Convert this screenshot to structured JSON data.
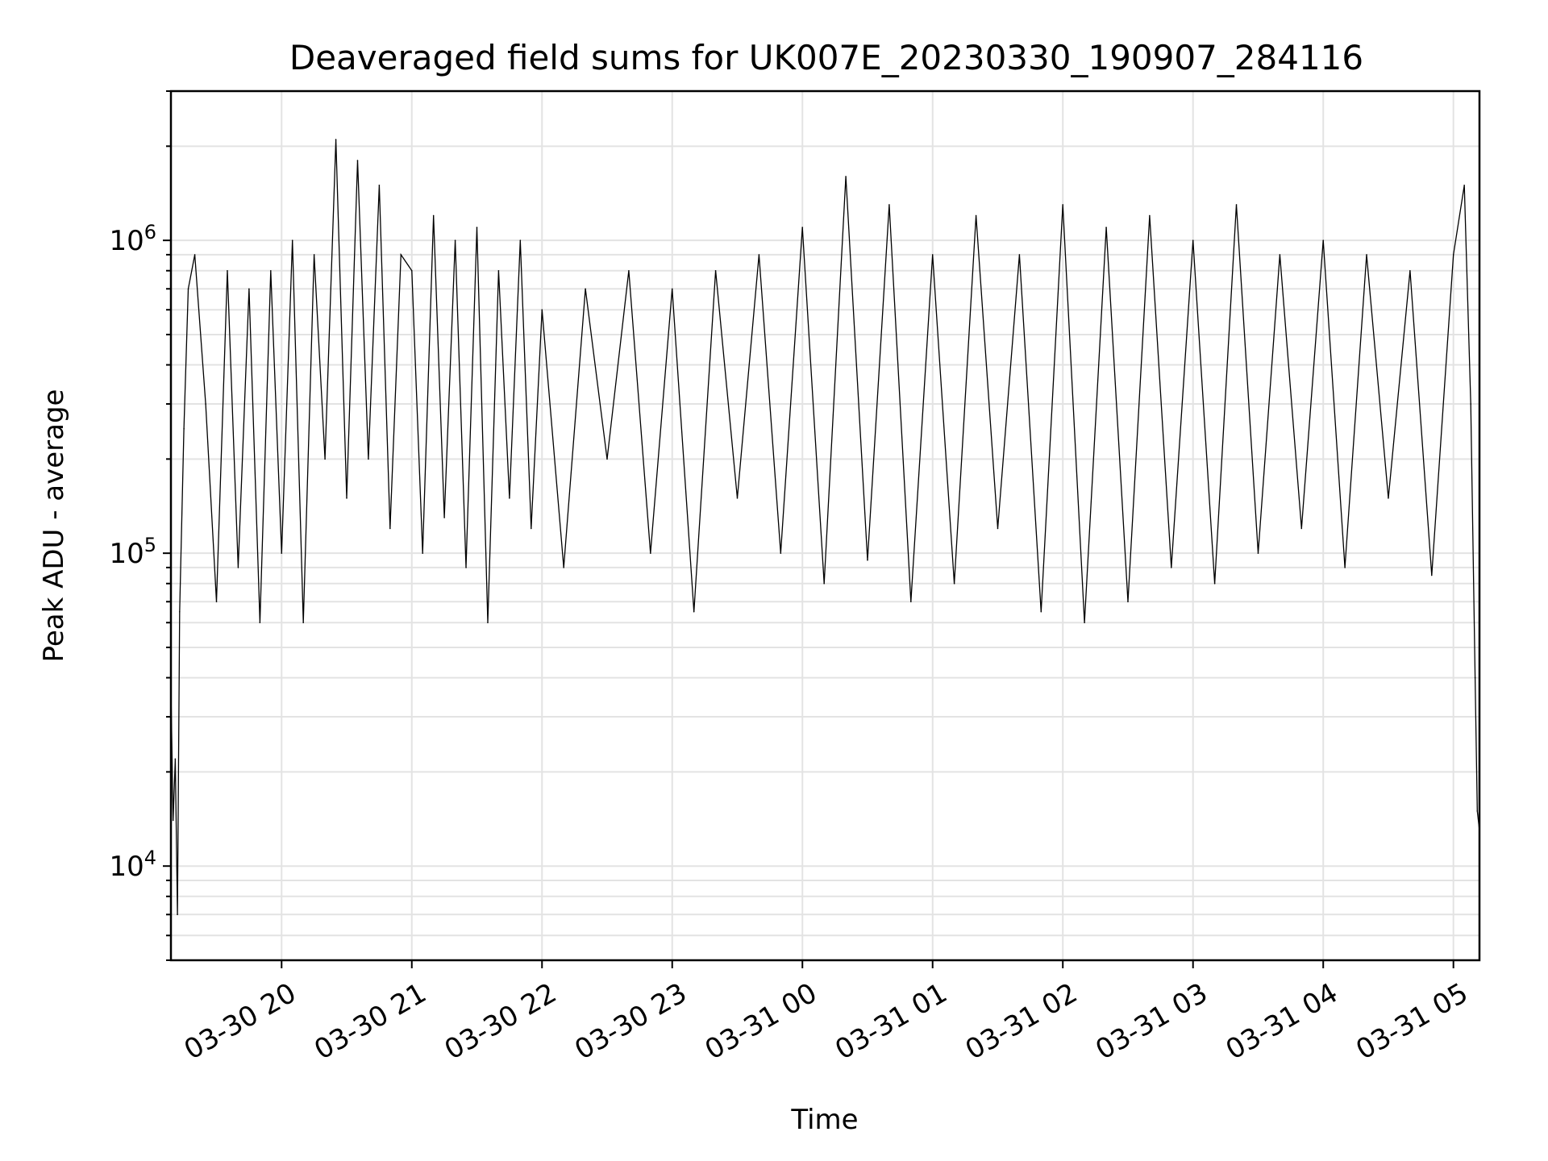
{
  "chart_data": {
    "type": "line",
    "title": "Deaveraged field sums for UK007E_20230330_190907_284116",
    "xlabel": "Time",
    "ylabel": "Peak ADU - average",
    "yscale": "log",
    "ylim": [
      5000,
      3000000
    ],
    "xlim": [
      "2023-03-30 19:09",
      "2023-03-31 05:12"
    ],
    "grid": true,
    "line_color": "#000000",
    "x_ticks": [
      {
        "value": "2023-03-30 20:00",
        "label": "03-30 20"
      },
      {
        "value": "2023-03-30 21:00",
        "label": "03-30 21"
      },
      {
        "value": "2023-03-30 22:00",
        "label": "03-30 22"
      },
      {
        "value": "2023-03-30 23:00",
        "label": "03-30 23"
      },
      {
        "value": "2023-03-31 00:00",
        "label": "03-31 00"
      },
      {
        "value": "2023-03-31 01:00",
        "label": "03-31 01"
      },
      {
        "value": "2023-03-31 02:00",
        "label": "03-31 02"
      },
      {
        "value": "2023-03-31 03:00",
        "label": "03-31 03"
      },
      {
        "value": "2023-03-31 04:00",
        "label": "03-31 04"
      },
      {
        "value": "2023-03-31 05:00",
        "label": "03-31 05"
      }
    ],
    "y_ticks": [
      {
        "value": 10000,
        "base": "10",
        "exp": "4"
      },
      {
        "value": 100000,
        "base": "10",
        "exp": "5"
      },
      {
        "value": 1000000,
        "base": "10",
        "exp": "6"
      }
    ],
    "series": [
      {
        "x": [
          "2023-03-30 19:09",
          "2023-03-30 19:10",
          "2023-03-30 19:11",
          "2023-03-30 19:12",
          "2023-03-30 19:13",
          "2023-03-30 19:15",
          "2023-03-30 19:17",
          "2023-03-30 19:20",
          "2023-03-30 19:25",
          "2023-03-30 19:30",
          "2023-03-30 19:35",
          "2023-03-30 19:40",
          "2023-03-30 19:45",
          "2023-03-30 19:50",
          "2023-03-30 19:55",
          "2023-03-30 20:00",
          "2023-03-30 20:05",
          "2023-03-30 20:10",
          "2023-03-30 20:15",
          "2023-03-30 20:20",
          "2023-03-30 20:25",
          "2023-03-30 20:30",
          "2023-03-30 20:35",
          "2023-03-30 20:40",
          "2023-03-30 20:45",
          "2023-03-30 20:50",
          "2023-03-30 20:55",
          "2023-03-30 21:00",
          "2023-03-30 21:05",
          "2023-03-30 21:10",
          "2023-03-30 21:15",
          "2023-03-30 21:20",
          "2023-03-30 21:25",
          "2023-03-30 21:30",
          "2023-03-30 21:35",
          "2023-03-30 21:40",
          "2023-03-30 21:45",
          "2023-03-30 21:50",
          "2023-03-30 21:55",
          "2023-03-30 22:00",
          "2023-03-30 22:10",
          "2023-03-30 22:20",
          "2023-03-30 22:30",
          "2023-03-30 22:40",
          "2023-03-30 22:50",
          "2023-03-30 23:00",
          "2023-03-30 23:10",
          "2023-03-30 23:20",
          "2023-03-30 23:30",
          "2023-03-30 23:40",
          "2023-03-30 23:50",
          "2023-03-31 00:00",
          "2023-03-31 00:10",
          "2023-03-31 00:20",
          "2023-03-31 00:30",
          "2023-03-31 00:40",
          "2023-03-31 00:50",
          "2023-03-31 01:00",
          "2023-03-31 01:10",
          "2023-03-31 01:20",
          "2023-03-31 01:30",
          "2023-03-31 01:40",
          "2023-03-31 01:50",
          "2023-03-31 02:00",
          "2023-03-31 02:10",
          "2023-03-31 02:20",
          "2023-03-31 02:30",
          "2023-03-31 02:40",
          "2023-03-31 02:50",
          "2023-03-31 03:00",
          "2023-03-31 03:10",
          "2023-03-31 03:20",
          "2023-03-31 03:30",
          "2023-03-31 03:40",
          "2023-03-31 03:50",
          "2023-03-31 04:00",
          "2023-03-31 04:10",
          "2023-03-31 04:20",
          "2023-03-31 04:30",
          "2023-03-31 04:40",
          "2023-03-31 04:50",
          "2023-03-31 05:00",
          "2023-03-31 05:05",
          "2023-03-31 05:08",
          "2023-03-31 05:10",
          "2023-03-31 05:11",
          "2023-03-31 05:12"
        ],
        "y": [
          37000,
          14000,
          22000,
          7000,
          65000,
          250000,
          700000,
          900000,
          300000,
          70000,
          800000,
          90000,
          700000,
          60000,
          800000,
          100000,
          1000000,
          60000,
          900000,
          200000,
          2100000,
          150000,
          1800000,
          200000,
          1500000,
          120000,
          900000,
          800000,
          100000,
          1200000,
          130000,
          1000000,
          90000,
          1100000,
          60000,
          800000,
          150000,
          1000000,
          120000,
          600000,
          90000,
          700000,
          200000,
          800000,
          100000,
          700000,
          65000,
          800000,
          150000,
          900000,
          100000,
          1100000,
          80000,
          1600000,
          95000,
          1300000,
          70000,
          900000,
          80000,
          1200000,
          120000,
          900000,
          65000,
          1300000,
          60000,
          1100000,
          70000,
          1200000,
          90000,
          1000000,
          80000,
          1300000,
          100000,
          900000,
          120000,
          1000000,
          90000,
          900000,
          150000,
          800000,
          85000,
          900000,
          1500000,
          300000,
          40000,
          15000,
          13000
        ]
      }
    ]
  }
}
